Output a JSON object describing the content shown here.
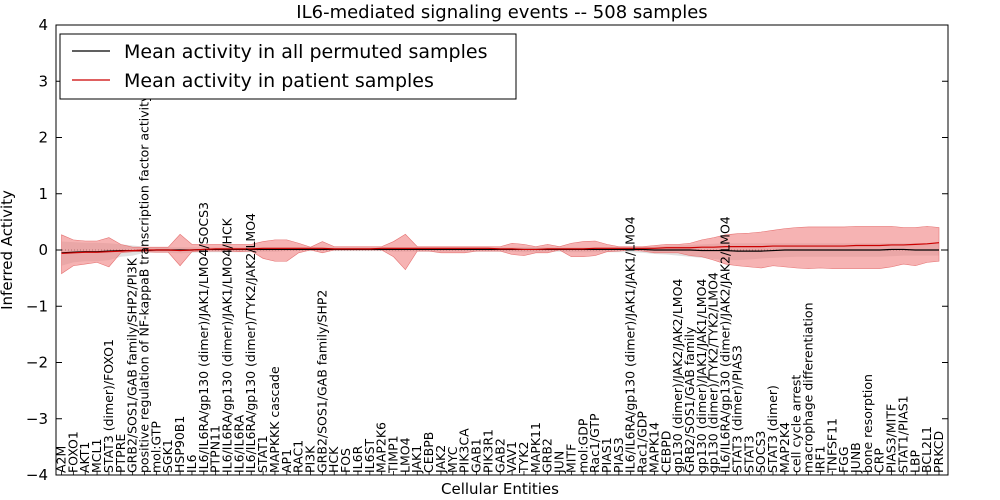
{
  "chart_data": {
    "type": "line",
    "title": "IL6-mediated signaling events -- 508 samples",
    "xlabel": "Cellular Entities",
    "ylabel": "Inferred Activity",
    "ylim": [
      -4,
      4
    ],
    "yticks": [
      "4",
      "3",
      "2",
      "1",
      "0",
      "−1",
      "−2",
      "−3",
      "−4"
    ],
    "legend_position": "top-left",
    "categories": [
      "A2M",
      "FOXO1",
      "AKT1",
      "MCL1",
      "STAT3 (dimer)/FOXO1",
      "PTPRE",
      "GRB2/SOS1/GAB family/SHP2/PI3K",
      "positive regulation of NF-kappaB transcription factor activity",
      "mol:GTP",
      "SGK1",
      "HSP90B1",
      "IL6",
      "IL6/IL6RA/gp130 (dimer)/JAK1/LMO4/SOCS3",
      "PTPN11",
      "IL6/IL6RA/gp130 (dimer)/JAK1/LMO4/HCK",
      "IL6/IL6RA",
      "IL6/IL6RA/gp130 (dimer)/TYK2/JAK2/LMO4",
      "STAT1",
      "MAPKKK cascade",
      "AP1",
      "RAC1",
      "PI3K",
      "GRB2/SOS1/GAB family/SHP2",
      "HCK",
      "FOS",
      "IL6R",
      "IL6ST",
      "MAP2K6",
      "TIMP1",
      "LMO4",
      "JAK1",
      "CEBPB",
      "JAK2",
      "MYC",
      "PIK3CA",
      "GAB1",
      "PIK3R1",
      "GAB2",
      "VAV1",
      "TYK2",
      "MAPK11",
      "GRB2",
      "JUN",
      "MITF",
      "mol:GDP",
      "Rac1/GTP",
      "PIAS1",
      "PIAS3",
      "IL6/IL6RA/gp130 (dimer)/JAK1/JAK1/LMO4",
      "Rac1/GDP",
      "MAPK14",
      "CEBPD",
      "gp130 (dimer)/JAK2/JAK2/LMO4",
      "GRB2/SOS1/GAB family",
      "gp130 (dimer)/JAK1/JAK1/LMO4",
      "gp130 (dimer)/TYK2/TYK2/LMO4",
      "IL6/IL6RA/gp130 (dimer)/JAK2/JAK2/LMO4",
      "STAT3 (dimer)/PIAS3",
      "STAT3",
      "SOCS3",
      "STAT3 (dimer)",
      "MAP2K4",
      "cell cycle arrest",
      "macrophage differentiation",
      "IRF1",
      "TNFSF11",
      "FGG",
      "JUNB",
      "bone resorption",
      "CRP",
      "PIAS3/MITF",
      "STAT1/PIAS1",
      "LBP",
      "BCL2L1",
      "PRKCD"
    ],
    "series": [
      {
        "name": "Mean activity in all permuted samples",
        "color": "#000000",
        "values": [
          -0.05,
          -0.04,
          -0.03,
          -0.03,
          -0.02,
          -0.01,
          -0.01,
          -0.01,
          0.0,
          0.0,
          0.0,
          0.0,
          0.01,
          0.01,
          0.01,
          0.01,
          0.01,
          0.01,
          0.01,
          0.01,
          0.01,
          0.01,
          0.01,
          0.01,
          0.01,
          0.01,
          0.01,
          0.01,
          0.01,
          0.01,
          0.01,
          0.01,
          0.01,
          0.01,
          0.01,
          0.01,
          0.01,
          0.01,
          0.01,
          0.01,
          0.01,
          0.01,
          0.01,
          0.01,
          0.01,
          0.01,
          0.01,
          0.01,
          0.01,
          0.01,
          0.0,
          0.0,
          0.0,
          0.0,
          -0.01,
          -0.01,
          -0.01,
          -0.02,
          -0.02,
          -0.02,
          -0.01,
          0.0,
          0.0,
          0.0,
          0.0,
          0.0,
          0.0,
          0.0,
          0.0,
          0.0,
          0.01,
          0.01,
          0.0,
          0.0,
          0.0
        ],
        "band_low": [
          -0.28,
          -0.22,
          -0.2,
          -0.2,
          -0.18,
          -0.12,
          -0.1,
          -0.05,
          -0.05,
          -0.05,
          -0.06,
          -0.05,
          -0.04,
          -0.04,
          -0.04,
          -0.04,
          -0.04,
          -0.03,
          -0.03,
          -0.02,
          -0.02,
          -0.02,
          -0.02,
          -0.02,
          -0.02,
          -0.02,
          -0.02,
          -0.02,
          -0.03,
          -0.03,
          -0.03,
          -0.03,
          -0.03,
          -0.03,
          -0.03,
          -0.03,
          -0.03,
          -0.03,
          -0.03,
          -0.04,
          -0.04,
          -0.03,
          -0.03,
          -0.04,
          -0.04,
          -0.04,
          -0.04,
          -0.04,
          -0.04,
          -0.05,
          -0.07,
          -0.08,
          -0.1,
          -0.12,
          -0.14,
          -0.16,
          -0.18,
          -0.18,
          -0.17,
          -0.15,
          -0.14,
          -0.13,
          -0.12,
          -0.12,
          -0.12,
          -0.12,
          -0.12,
          -0.12,
          -0.12,
          -0.12,
          -0.11,
          -0.1,
          -0.1,
          -0.1,
          -0.1
        ],
        "band_high": [
          0.15,
          0.14,
          0.13,
          0.13,
          0.12,
          0.1,
          0.08,
          0.06,
          0.05,
          0.05,
          0.05,
          0.05,
          0.05,
          0.05,
          0.05,
          0.05,
          0.05,
          0.05,
          0.05,
          0.05,
          0.05,
          0.05,
          0.05,
          0.05,
          0.05,
          0.05,
          0.05,
          0.05,
          0.05,
          0.05,
          0.05,
          0.05,
          0.05,
          0.05,
          0.05,
          0.05,
          0.05,
          0.05,
          0.05,
          0.05,
          0.05,
          0.05,
          0.05,
          0.05,
          0.05,
          0.05,
          0.05,
          0.05,
          0.05,
          0.05,
          0.06,
          0.07,
          0.08,
          0.09,
          0.1,
          0.11,
          0.12,
          0.12,
          0.12,
          0.12,
          0.12,
          0.12,
          0.12,
          0.12,
          0.12,
          0.12,
          0.12,
          0.12,
          0.12,
          0.12,
          0.12,
          0.12,
          0.12,
          0.12,
          0.12
        ]
      },
      {
        "name": "Mean activity in patient samples",
        "color": "#cc0000",
        "values": [
          -0.06,
          -0.05,
          -0.04,
          -0.04,
          -0.03,
          -0.02,
          -0.01,
          0.0,
          0.0,
          0.0,
          -0.01,
          0.0,
          0.01,
          0.02,
          0.02,
          0.02,
          0.02,
          0.03,
          0.03,
          0.03,
          0.03,
          0.03,
          0.03,
          0.02,
          0.02,
          0.02,
          0.02,
          0.03,
          0.03,
          0.03,
          0.03,
          0.03,
          0.03,
          0.03,
          0.03,
          0.03,
          0.03,
          0.02,
          0.02,
          0.01,
          0.01,
          0.02,
          0.02,
          0.02,
          0.02,
          0.03,
          0.03,
          0.03,
          0.03,
          0.03,
          0.03,
          0.04,
          0.04,
          0.04,
          0.05,
          0.05,
          0.06,
          0.06,
          0.06,
          0.06,
          0.07,
          0.07,
          0.07,
          0.07,
          0.07,
          0.07,
          0.07,
          0.08,
          0.08,
          0.08,
          0.09,
          0.09,
          0.1,
          0.11,
          0.13
        ],
        "band_low": [
          -0.42,
          -0.28,
          -0.25,
          -0.22,
          -0.3,
          -0.05,
          -0.03,
          -0.03,
          -0.04,
          -0.04,
          -0.28,
          -0.03,
          -0.02,
          -0.02,
          -0.02,
          -0.03,
          -0.02,
          -0.15,
          -0.2,
          -0.2,
          -0.05,
          0.0,
          -0.05,
          0.0,
          0.0,
          0.0,
          0.0,
          0.0,
          -0.12,
          -0.35,
          -0.02,
          -0.02,
          -0.05,
          -0.05,
          -0.05,
          -0.02,
          -0.02,
          -0.02,
          -0.08,
          -0.1,
          -0.05,
          -0.05,
          0.0,
          -0.12,
          -0.12,
          -0.1,
          -0.03,
          -0.02,
          0.0,
          -0.02,
          -0.05,
          -0.05,
          -0.05,
          -0.1,
          -0.12,
          -0.18,
          -0.25,
          -0.28,
          -0.3,
          -0.32,
          -0.28,
          -0.3,
          -0.32,
          -0.33,
          -0.32,
          -0.33,
          -0.33,
          -0.33,
          -0.33,
          -0.33,
          -0.3,
          -0.25,
          -0.28,
          -0.22,
          -0.2
        ],
        "band_high": [
          0.27,
          0.18,
          0.16,
          0.16,
          0.22,
          0.1,
          0.05,
          0.05,
          0.05,
          0.05,
          0.28,
          0.1,
          0.1,
          0.1,
          0.1,
          0.1,
          0.1,
          0.15,
          0.18,
          0.18,
          0.12,
          0.05,
          0.15,
          0.06,
          0.06,
          0.06,
          0.06,
          0.06,
          0.15,
          0.28,
          0.06,
          0.06,
          0.06,
          0.06,
          0.06,
          0.06,
          0.06,
          0.06,
          0.12,
          0.1,
          0.06,
          0.1,
          0.06,
          0.12,
          0.15,
          0.16,
          0.1,
          0.06,
          0.06,
          0.06,
          0.08,
          0.1,
          0.1,
          0.12,
          0.18,
          0.22,
          0.27,
          0.29,
          0.3,
          0.32,
          0.35,
          0.38,
          0.4,
          0.41,
          0.41,
          0.41,
          0.41,
          0.42,
          0.42,
          0.42,
          0.42,
          0.4,
          0.4,
          0.42,
          0.4
        ]
      }
    ]
  }
}
